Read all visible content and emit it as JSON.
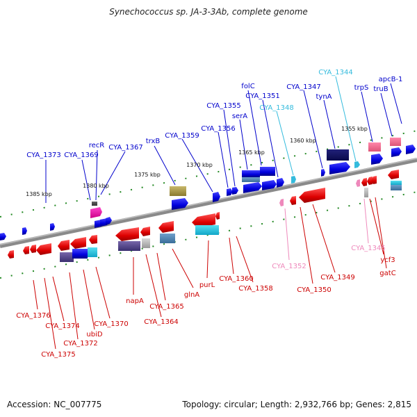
{
  "title": "Synechococcus sp. JA-3-3Ab, complete genome",
  "footer": {
    "accession": "Accession: NC_007775",
    "topology": "Topology: circular; Length: 2,932,766 bp; Genes: 2,815"
  },
  "colors": {
    "forward_gene": "#0000dd",
    "reverse_gene": "#dd0000",
    "forward_rna": "#33bbdd",
    "reverse_rna": "#ee88bb",
    "backbone": "#777777",
    "tick": "#228822"
  },
  "scale_labels": [
    "1385 kbp",
    "1380 kbp",
    "1375 kbp",
    "1370 kbp",
    "1365 kbp",
    "1360 kbp",
    "1355 kbp"
  ],
  "top_labels": [
    {
      "text": "CYA_1373",
      "color": "#0000cc"
    },
    {
      "text": "CYA_1369",
      "color": "#0000cc"
    },
    {
      "text": "recR",
      "color": "#0000cc"
    },
    {
      "text": "CYA_1367",
      "color": "#0000cc"
    },
    {
      "text": "trxB",
      "color": "#0000cc"
    },
    {
      "text": "CYA_1359",
      "color": "#0000cc"
    },
    {
      "text": "CYA_1356",
      "color": "#0000cc"
    },
    {
      "text": "CYA_1355",
      "color": "#0000cc"
    },
    {
      "text": "serA",
      "color": "#0000cc"
    },
    {
      "text": "folC",
      "color": "#0000cc"
    },
    {
      "text": "CYA_1351",
      "color": "#0000cc"
    },
    {
      "text": "CYA_1348",
      "color": "#33bbdd"
    },
    {
      "text": "CYA_1347",
      "color": "#0000cc"
    },
    {
      "text": "tynA",
      "color": "#0000cc"
    },
    {
      "text": "CYA_1344",
      "color": "#33bbdd"
    },
    {
      "text": "trpS",
      "color": "#0000cc"
    },
    {
      "text": "truB",
      "color": "#0000cc"
    },
    {
      "text": "apcB-1",
      "color": "#0000cc"
    }
  ],
  "bottom_labels": [
    {
      "text": "CYA_1376",
      "color": "#cc0000"
    },
    {
      "text": "CYA_1374",
      "color": "#cc0000"
    },
    {
      "text": "CYA_1375",
      "color": "#cc0000"
    },
    {
      "text": "CYA_1372",
      "color": "#cc0000"
    },
    {
      "text": "ubiD",
      "color": "#cc0000"
    },
    {
      "text": "CYA_1370",
      "color": "#cc0000"
    },
    {
      "text": "napA",
      "color": "#cc0000"
    },
    {
      "text": "CYA_1364",
      "color": "#cc0000"
    },
    {
      "text": "CYA_1365",
      "color": "#cc0000"
    },
    {
      "text": "glnA",
      "color": "#cc0000"
    },
    {
      "text": "purL",
      "color": "#cc0000"
    },
    {
      "text": "CYA_1360",
      "color": "#cc0000"
    },
    {
      "text": "CYA_1358",
      "color": "#cc0000"
    },
    {
      "text": "CYA_1352",
      "color": "#ee88bb"
    },
    {
      "text": "CYA_1350",
      "color": "#cc0000"
    },
    {
      "text": "CYA_1349",
      "color": "#cc0000"
    },
    {
      "text": "CYA_1345",
      "color": "#ee88bb"
    },
    {
      "text": "ycf3",
      "color": "#cc0000"
    },
    {
      "text": "gatC",
      "color": "#cc0000"
    }
  ]
}
